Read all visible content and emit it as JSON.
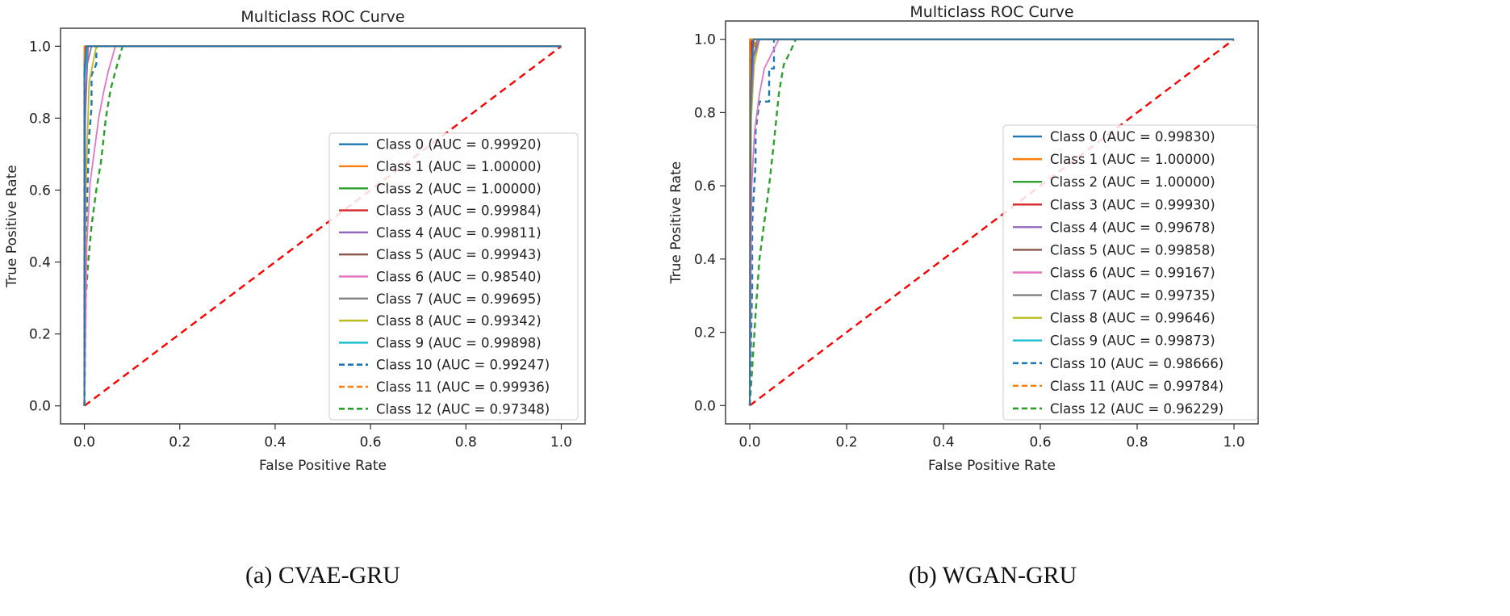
{
  "chart_data": [
    {
      "type": "line",
      "panel": "a",
      "title": "Multiclass ROC Curve",
      "xlabel": "False Positive Rate",
      "ylabel": "True Positive Rate",
      "caption": "(a) CVAE-GRU",
      "xlim": [
        -0.05,
        1.05
      ],
      "ylim": [
        -0.05,
        1.05
      ],
      "xticks": [
        0.0,
        0.2,
        0.4,
        0.6,
        0.8,
        1.0
      ],
      "yticks": [
        0.0,
        0.2,
        0.4,
        0.6,
        0.8,
        1.0
      ],
      "xtick_labels": [
        "0.0",
        "0.2",
        "0.4",
        "0.6",
        "0.8",
        "1.0"
      ],
      "ytick_labels": [
        "0.0",
        "0.2",
        "0.4",
        "0.6",
        "0.8",
        "1.0"
      ],
      "legend_position": "center-right",
      "baseline": {
        "x": [
          0,
          1
        ],
        "y": [
          0,
          1
        ],
        "color": "#ff0000",
        "dash": true
      },
      "series": [
        {
          "name": "Class 0 (AUC = 0.99920)",
          "color": "#1f77b4",
          "dash": false,
          "x": [
            0,
            0,
            0.004,
            1
          ],
          "y": [
            0,
            0.93,
            1.0,
            1.0
          ]
        },
        {
          "name": "Class 1 (AUC = 1.00000)",
          "color": "#ff7f0e",
          "dash": false,
          "x": [
            0,
            0,
            1
          ],
          "y": [
            0,
            1.0,
            1.0
          ]
        },
        {
          "name": "Class 2 (AUC = 1.00000)",
          "color": "#2ca02c",
          "dash": false,
          "x": [
            0,
            0,
            1
          ],
          "y": [
            0,
            1.0,
            1.0
          ]
        },
        {
          "name": "Class 3 (AUC = 0.99984)",
          "color": "#d62728",
          "dash": false,
          "x": [
            0,
            0,
            0.002,
            1
          ],
          "y": [
            0,
            0.97,
            1.0,
            1.0
          ]
        },
        {
          "name": "Class 4 (AUC = 0.99811)",
          "color": "#9467bd",
          "dash": false,
          "x": [
            0,
            0.002,
            0.008,
            1
          ],
          "y": [
            0,
            0.85,
            1.0,
            1.0
          ]
        },
        {
          "name": "Class 5 (AUC = 0.99943)",
          "color": "#8c564b",
          "dash": false,
          "x": [
            0,
            0,
            0.003,
            1
          ],
          "y": [
            0,
            0.94,
            1.0,
            1.0
          ]
        },
        {
          "name": "Class 6 (AUC = 0.98540)",
          "color": "#e377c2",
          "dash": false,
          "x": [
            0,
            0.005,
            0.012,
            0.02,
            0.03,
            0.04,
            0.05,
            0.065,
            1
          ],
          "y": [
            0,
            0.45,
            0.62,
            0.7,
            0.8,
            0.87,
            0.93,
            1.0,
            1.0
          ]
        },
        {
          "name": "Class 7 (AUC = 0.99695)",
          "color": "#7f7f7f",
          "dash": false,
          "x": [
            0,
            0.002,
            0.006,
            0.015,
            1
          ],
          "y": [
            0,
            0.8,
            0.95,
            1.0,
            1.0
          ]
        },
        {
          "name": "Class 8 (AUC = 0.99342)",
          "color": "#bcbd22",
          "dash": false,
          "x": [
            0,
            0.003,
            0.01,
            0.025,
            1
          ],
          "y": [
            0,
            0.6,
            0.9,
            1.0,
            1.0
          ]
        },
        {
          "name": "Class 9 (AUC = 0.99898)",
          "color": "#17becf",
          "dash": false,
          "x": [
            0,
            0,
            0.006,
            1
          ],
          "y": [
            0,
            0.9,
            1.0,
            1.0
          ]
        },
        {
          "name": "Class 10 (AUC = 0.99247)",
          "color": "#1f77b4",
          "dash": true,
          "x": [
            0,
            0.004,
            0.01,
            0.015,
            0.015,
            0.025,
            0.025,
            1
          ],
          "y": [
            0,
            0.5,
            0.75,
            0.83,
            0.92,
            0.95,
            1.0,
            1.0
          ]
        },
        {
          "name": "Class 11 (AUC = 0.99936)",
          "color": "#ff7f0e",
          "dash": true,
          "x": [
            0,
            0,
            0.004,
            1
          ],
          "y": [
            0,
            0.95,
            1.0,
            1.0
          ]
        },
        {
          "name": "Class 12 (AUC = 0.97348)",
          "color": "#2ca02c",
          "dash": true,
          "x": [
            0,
            0.003,
            0.008,
            0.015,
            0.025,
            0.035,
            0.045,
            0.055,
            0.065,
            0.08,
            1
          ],
          "y": [
            0,
            0.3,
            0.4,
            0.5,
            0.6,
            0.68,
            0.8,
            0.88,
            0.93,
            1.0,
            1.0
          ]
        }
      ]
    },
    {
      "type": "line",
      "panel": "b",
      "title": "Multiclass ROC Curve",
      "xlabel": "False Positive Rate",
      "ylabel": "True Positive Rate",
      "caption": "(b) WGAN-GRU",
      "xlim": [
        -0.05,
        1.05
      ],
      "ylim": [
        -0.05,
        1.05
      ],
      "xticks": [
        0.0,
        0.2,
        0.4,
        0.6,
        0.8,
        1.0
      ],
      "yticks": [
        0.0,
        0.2,
        0.4,
        0.6,
        0.8,
        1.0
      ],
      "xtick_labels": [
        "0.0",
        "0.2",
        "0.4",
        "0.6",
        "0.8",
        "1.0"
      ],
      "ytick_labels": [
        "0.0",
        "0.2",
        "0.4",
        "0.6",
        "0.8",
        "1.0"
      ],
      "legend_position": "center-right",
      "baseline": {
        "x": [
          0,
          1
        ],
        "y": [
          0,
          1
        ],
        "color": "#ff0000",
        "dash": true
      },
      "series": [
        {
          "name": "Class 0 (AUC = 0.99830)",
          "color": "#1f77b4",
          "dash": false,
          "x": [
            0,
            0.002,
            0.008,
            1
          ],
          "y": [
            0,
            0.88,
            1.0,
            1.0
          ]
        },
        {
          "name": "Class 1 (AUC = 1.00000)",
          "color": "#ff7f0e",
          "dash": false,
          "x": [
            0,
            0,
            1
          ],
          "y": [
            0,
            1.0,
            1.0
          ]
        },
        {
          "name": "Class 2 (AUC = 1.00000)",
          "color": "#2ca02c",
          "dash": false,
          "x": [
            0,
            0,
            1
          ],
          "y": [
            0,
            1.0,
            1.0
          ]
        },
        {
          "name": "Class 3 (AUC = 0.99930)",
          "color": "#d62728",
          "dash": false,
          "x": [
            0,
            0,
            0.004,
            1
          ],
          "y": [
            0,
            0.95,
            1.0,
            1.0
          ]
        },
        {
          "name": "Class 4 (AUC = 0.99678)",
          "color": "#9467bd",
          "dash": false,
          "x": [
            0,
            0.002,
            0.008,
            0.02,
            1
          ],
          "y": [
            0,
            0.8,
            0.95,
            1.0,
            1.0
          ]
        },
        {
          "name": "Class 5 (AUC = 0.99858)",
          "color": "#8c564b",
          "dash": false,
          "x": [
            0,
            0.001,
            0.006,
            1
          ],
          "y": [
            0,
            0.9,
            1.0,
            1.0
          ]
        },
        {
          "name": "Class 6 (AUC = 0.99167)",
          "color": "#e377c2",
          "dash": false,
          "x": [
            0,
            0.004,
            0.01,
            0.02,
            0.03,
            0.045,
            0.06,
            1
          ],
          "y": [
            0,
            0.6,
            0.75,
            0.85,
            0.92,
            0.96,
            1.0,
            1.0
          ]
        },
        {
          "name": "Class 7 (AUC = 0.99735)",
          "color": "#7f7f7f",
          "dash": false,
          "x": [
            0,
            0.002,
            0.007,
            0.016,
            1
          ],
          "y": [
            0,
            0.82,
            0.95,
            1.0,
            1.0
          ]
        },
        {
          "name": "Class 8 (AUC = 0.99646)",
          "color": "#bcbd22",
          "dash": false,
          "x": [
            0,
            0.003,
            0.009,
            0.02,
            1
          ],
          "y": [
            0,
            0.78,
            0.93,
            1.0,
            1.0
          ]
        },
        {
          "name": "Class 9 (AUC = 0.99873)",
          "color": "#17becf",
          "dash": false,
          "x": [
            0,
            0.001,
            0.006,
            1
          ],
          "y": [
            0,
            0.9,
            1.0,
            1.0
          ]
        },
        {
          "name": "Class 10 (AUC = 0.98666)",
          "color": "#1f77b4",
          "dash": true,
          "x": [
            0,
            0.005,
            0.005,
            0.012,
            0.012,
            0.02,
            0.02,
            0.04,
            0.04,
            0.05,
            0.05,
            1
          ],
          "y": [
            0,
            0.33,
            0.5,
            0.66,
            0.75,
            0.83,
            0.83,
            0.83,
            0.92,
            0.92,
            1.0,
            1.0
          ]
        },
        {
          "name": "Class 11 (AUC = 0.99784)",
          "color": "#ff7f0e",
          "dash": true,
          "x": [
            0,
            0.002,
            0.006,
            0.012,
            1
          ],
          "y": [
            0,
            0.85,
            0.95,
            1.0,
            1.0
          ]
        },
        {
          "name": "Class 12 (AUC = 0.96229)",
          "color": "#2ca02c",
          "dash": true,
          "x": [
            0,
            0.005,
            0.012,
            0.02,
            0.03,
            0.04,
            0.05,
            0.06,
            0.07,
            0.085,
            0.095,
            1
          ],
          "y": [
            0,
            0.1,
            0.25,
            0.4,
            0.5,
            0.6,
            0.72,
            0.85,
            0.93,
            0.97,
            1.0,
            1.0
          ]
        }
      ]
    }
  ]
}
